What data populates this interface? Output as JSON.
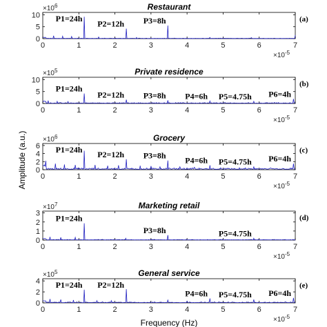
{
  "figure": {
    "xlabel": "Frequency (Hz)",
    "ylabel": "Amplitude (a.u.)"
  },
  "chart_data": [
    {
      "type": "line",
      "title": "Restaurant",
      "panel_label": "(a)",
      "y_multiplier": "×10",
      "y_multiplier_exp": "6",
      "yticks": [
        0,
        5,
        10
      ],
      "ylim": [
        0,
        11
      ],
      "x_multiplier": "×10",
      "x_multiplier_exp": "-5",
      "xticks": [
        0,
        1,
        2,
        3,
        4,
        5,
        6,
        7
      ],
      "xlim": [
        0,
        7
      ],
      "color": "#1f1fbf",
      "peaks": [
        {
          "label": "P1=24h",
          "x": 1.157,
          "y": 9.2
        },
        {
          "label": "P2=12h",
          "x": 2.315,
          "y": 4.2
        },
        {
          "label": "P3=8h",
          "x": 3.472,
          "y": 5.5
        }
      ],
      "minor_peaks": [
        [
          0.3,
          1.2
        ],
        [
          0.55,
          1.0
        ],
        [
          0.8,
          0.9
        ],
        [
          1.55,
          0.7
        ],
        [
          2.6,
          0.5
        ],
        [
          4.63,
          0.5
        ],
        [
          5.79,
          0.4
        ],
        [
          7.0,
          1.5
        ]
      ],
      "noise_level": 0.25
    },
    {
      "type": "line",
      "title": "Private residence",
      "panel_label": "(b)",
      "y_multiplier": "×10",
      "y_multiplier_exp": "5",
      "yticks": [
        0,
        5,
        10
      ],
      "ylim": [
        0,
        11
      ],
      "x_multiplier": "×10",
      "x_multiplier_exp": "-5",
      "xticks": [
        0,
        1,
        2,
        3,
        4,
        5,
        6,
        7
      ],
      "xlim": [
        0,
        7
      ],
      "color": "#1f1fbf",
      "peaks": [
        {
          "label": "P1=24h",
          "x": 1.157,
          "y": 4.2
        },
        {
          "label": "P2=12h",
          "x": 2.315,
          "y": 1.6
        },
        {
          "label": "P3=8h",
          "x": 3.472,
          "y": 1.3
        },
        {
          "label": "P4=6h",
          "x": 4.63,
          "y": 1.0
        },
        {
          "label": "P5=4.75h",
          "x": 5.848,
          "y": 0.9
        },
        {
          "label": "P6=4h",
          "x": 6.944,
          "y": 1.9
        }
      ],
      "minor_peaks": [
        [
          0.15,
          1.2
        ],
        [
          0.4,
          0.9
        ],
        [
          0.7,
          0.8
        ]
      ],
      "noise_level": 0.45
    },
    {
      "type": "line",
      "title": "Grocery",
      "panel_label": "(c)",
      "y_multiplier": "×10",
      "y_multiplier_exp": "6",
      "yticks": [
        0,
        2,
        4,
        6
      ],
      "ylim": [
        0,
        6.5
      ],
      "x_multiplier": "×10",
      "x_multiplier_exp": "-5",
      "xticks": [
        0,
        1,
        2,
        3,
        4,
        5,
        6,
        7
      ],
      "xlim": [
        0,
        7
      ],
      "color": "#1f1fbf",
      "peaks": [
        {
          "label": "P1=24h",
          "x": 1.157,
          "y": 4.7
        },
        {
          "label": "P2=12h",
          "x": 2.315,
          "y": 2.6
        },
        {
          "label": "P3=8h",
          "x": 3.472,
          "y": 2.3
        },
        {
          "label": "P4=6h",
          "x": 4.63,
          "y": 1.1
        },
        {
          "label": "P5=4.75h",
          "x": 5.848,
          "y": 0.8
        },
        {
          "label": "P6=4h",
          "x": 6.944,
          "y": 1.5
        }
      ],
      "minor_peaks": [
        [
          0.08,
          2.2
        ],
        [
          0.35,
          1.5
        ],
        [
          0.6,
          1.3
        ],
        [
          0.9,
          1.2
        ],
        [
          1.45,
          1.2
        ],
        [
          1.8,
          1.0
        ],
        [
          2.1,
          1.1
        ],
        [
          2.7,
          1.0
        ],
        [
          3.0,
          0.9
        ],
        [
          3.25,
          0.8
        ],
        [
          3.8,
          0.8
        ],
        [
          4.2,
          0.6
        ]
      ],
      "noise_level": 0.5
    },
    {
      "type": "line",
      "title": "Marketing retail",
      "panel_label": "(d)",
      "y_multiplier": "×10",
      "y_multiplier_exp": "7",
      "yticks": [
        0,
        1,
        2,
        3
      ],
      "ylim": [
        0,
        3.2
      ],
      "x_multiplier": "×10",
      "x_multiplier_exp": "-5",
      "xticks": [
        0,
        1,
        2,
        3,
        4,
        5,
        6,
        7
      ],
      "xlim": [
        0,
        7
      ],
      "color": "#1f1fbf",
      "peaks": [
        {
          "label": "P1=24h",
          "x": 1.157,
          "y": 1.85
        },
        {
          "label": "P3=8h",
          "x": 3.472,
          "y": 0.55
        },
        {
          "label": "P5=4.75h",
          "x": 5.848,
          "y": 0.2
        }
      ],
      "minor_peaks": [
        [
          0.2,
          0.35
        ],
        [
          0.5,
          0.3
        ],
        [
          0.9,
          0.3
        ],
        [
          2.3,
          0.2
        ]
      ],
      "noise_level": 0.08
    },
    {
      "type": "line",
      "title": "General service",
      "panel_label": "(e)",
      "y_multiplier": "×10",
      "y_multiplier_exp": "5",
      "yticks": [
        0,
        2,
        4
      ],
      "ylim": [
        0,
        4.4
      ],
      "x_multiplier": "×10",
      "x_multiplier_exp": "-5",
      "xticks": [
        0,
        1,
        2,
        3,
        4,
        5,
        6,
        7
      ],
      "xlim": [
        0,
        7
      ],
      "color": "#1f1fbf",
      "peaks": [
        {
          "label": "P1=24h",
          "x": 1.157,
          "y": 2.4
        },
        {
          "label": "P2=12h",
          "x": 2.315,
          "y": 2.5
        },
        {
          "label": "P4=6h",
          "x": 4.63,
          "y": 0.8
        },
        {
          "label": "P5=4.75h",
          "x": 5.848,
          "y": 0.6
        },
        {
          "label": "P6=4h",
          "x": 6.944,
          "y": 0.9
        }
      ],
      "minor_peaks": [
        [
          0.2,
          0.7
        ],
        [
          0.5,
          0.6
        ],
        [
          0.85,
          0.5
        ],
        [
          1.5,
          0.4
        ],
        [
          1.9,
          0.4
        ],
        [
          3.47,
          0.5
        ],
        [
          4.0,
          0.3
        ]
      ],
      "noise_level": 0.2
    }
  ]
}
